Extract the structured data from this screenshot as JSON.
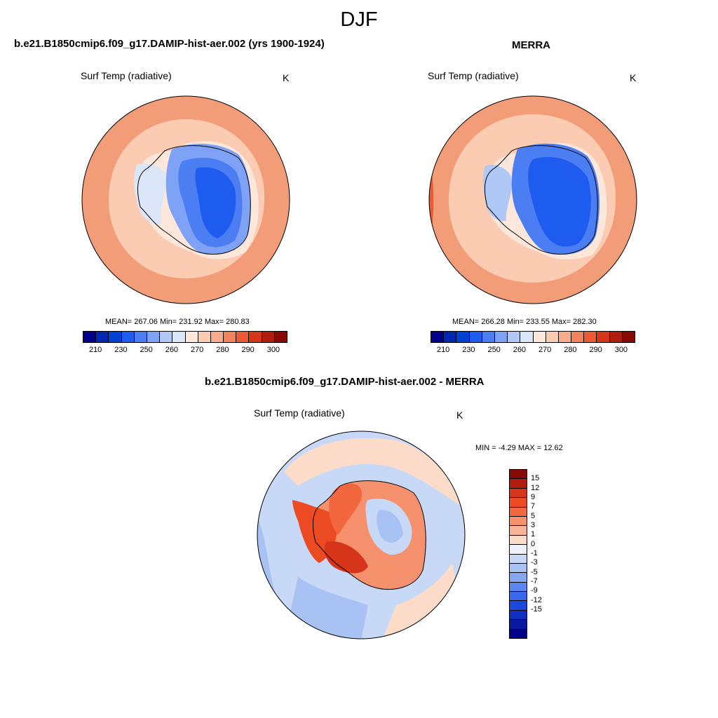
{
  "figure": {
    "title": "DJF"
  },
  "panels": [
    {
      "title": "b.e21.B1850cmip6.f09_g17.DAMIP-hist-aer.002 (yrs 1900-1924)",
      "variable": "Surf Temp (radiative)",
      "units": "K",
      "stats": {
        "mean": "267.06",
        "min": "231.92",
        "max": "280.83"
      },
      "stats_text": "MEAN= 267.06  Min= 231.92  Max= 280.83"
    },
    {
      "title": "MERRA",
      "variable": "Surf Temp (radiative)",
      "units": "K",
      "stats": {
        "mean": "266.28",
        "min": "233.55",
        "max": "282.30"
      },
      "stats_text": "MEAN= 266.28  Min= 233.55  Max= 282.30"
    },
    {
      "title": "b.e21.B1850cmip6.f09_g17.DAMIP-hist-aer.002 - MERRA",
      "variable": "Surf Temp (radiative)",
      "units": "K",
      "stats": {
        "min": "-4.29",
        "max": "12.62"
      },
      "stats_text": "MIN =  -4.29 MAX =  12.62"
    }
  ],
  "abs_colorbar": {
    "colors": [
      "#00008b",
      "#0027b3",
      "#0042d6",
      "#1e5cf0",
      "#4a7ef2",
      "#7ea2f5",
      "#b0c8f5",
      "#dbe7f8",
      "#fde6da",
      "#fbcbb2",
      "#f8ac8a",
      "#f3835f",
      "#ec5a34",
      "#d7351a",
      "#b01d0c",
      "#850b04"
    ],
    "tick_labels": [
      "210",
      "230",
      "250",
      "260",
      "270",
      "280",
      "290",
      "300"
    ]
  },
  "diff_colorbar": {
    "colors_top_to_bottom": [
      "#850b04",
      "#b01d0c",
      "#d7351a",
      "#ec4a22",
      "#f3673f",
      "#f5916c",
      "#f8b496",
      "#fcdcc9",
      "#eef3fb",
      "#c7d9f7",
      "#a9c2f4",
      "#85a8f1",
      "#5c87ee",
      "#3a68ea",
      "#1c48dd",
      "#0f2fbf",
      "#081ba0",
      "#00008b"
    ],
    "tick_labels": [
      "15",
      "12",
      "9",
      "7",
      "5",
      "3",
      "1",
      "0",
      "-1",
      "-3",
      "-5",
      "-7",
      "-9",
      "-12",
      "-15"
    ]
  },
  "map_colors": {
    "ocean_warm": "#f7b293",
    "ocean_warmer": "#f39c78",
    "ocean_cool": "#fbcbb2",
    "ice_edge": "#fde6da",
    "ice_light": "#dbe7f8",
    "ice_mid": "#7ea2f5",
    "ice_deep": "#4a7ef2",
    "ice_core": "#1e5cf0",
    "diff_ocean_neg": "#c7d9f7",
    "diff_ocean_neg2": "#a9c2f4",
    "diff_ocean_pos": "#fcdcc9",
    "diff_land_pos": "#f3673f",
    "diff_land_pos2": "#ec4a22",
    "diff_land_pos3": "#f5916c",
    "diff_land_core": "#a9c2f4"
  }
}
